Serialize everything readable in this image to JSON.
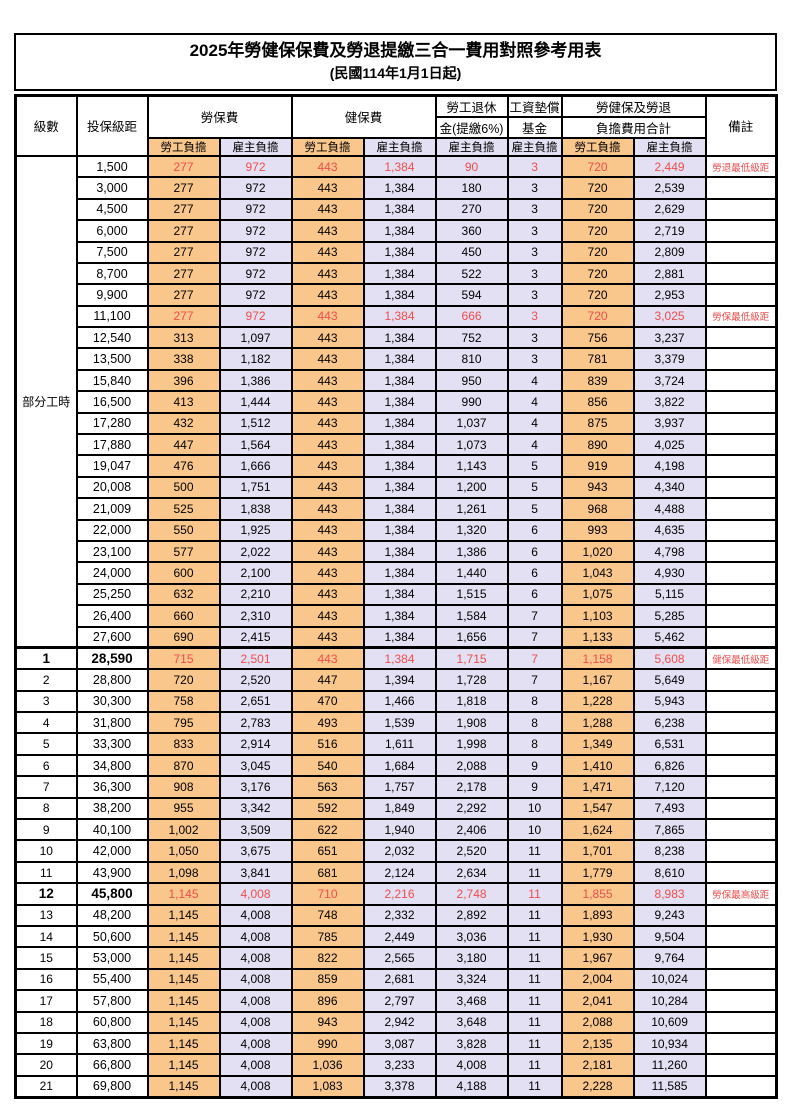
{
  "title": "2025年勞健保保費及勞退提繳三合一費用對照參考用表",
  "subtitle": "(民國114年1月1日起)",
  "colors": {
    "employee_column_bg": "#F9C68C",
    "employer_column_bg": "#E2E0F2",
    "highlight_red": "#EE4D4D",
    "border": "#000000"
  },
  "header": {
    "level": "級數",
    "bracket": "投保級距",
    "labor_insurance": "勞保費",
    "health_insurance": "健保費",
    "pension_line1": "勞工退休",
    "pension_line2": "金(提繳6%)",
    "wage_fund_line1": "工資墊償",
    "wage_fund_line2": "基金",
    "total_line1": "勞健保及勞退",
    "total_line2": "負擔費用合計",
    "remark": "備註",
    "employee": "勞工負擔",
    "employer": "雇主負擔"
  },
  "part_time": {
    "label": "部分工時",
    "span": 23
  },
  "rows": [
    {
      "level": null,
      "bracket": "1,500",
      "values": [
        "277",
        "972",
        "443",
        "1,384",
        "90",
        "3",
        "720",
        "2,449"
      ],
      "remark": "勞退最低級距",
      "red": true,
      "strong": false,
      "section": false
    },
    {
      "level": null,
      "bracket": "3,000",
      "values": [
        "277",
        "972",
        "443",
        "1,384",
        "180",
        "3",
        "720",
        "2,539"
      ],
      "remark": "",
      "red": false,
      "strong": false,
      "section": false
    },
    {
      "level": null,
      "bracket": "4,500",
      "values": [
        "277",
        "972",
        "443",
        "1,384",
        "270",
        "3",
        "720",
        "2,629"
      ],
      "remark": "",
      "red": false,
      "strong": false,
      "section": false
    },
    {
      "level": null,
      "bracket": "6,000",
      "values": [
        "277",
        "972",
        "443",
        "1,384",
        "360",
        "3",
        "720",
        "2,719"
      ],
      "remark": "",
      "red": false,
      "strong": false,
      "section": false
    },
    {
      "level": null,
      "bracket": "7,500",
      "values": [
        "277",
        "972",
        "443",
        "1,384",
        "450",
        "3",
        "720",
        "2,809"
      ],
      "remark": "",
      "red": false,
      "strong": false,
      "section": false
    },
    {
      "level": null,
      "bracket": "8,700",
      "values": [
        "277",
        "972",
        "443",
        "1,384",
        "522",
        "3",
        "720",
        "2,881"
      ],
      "remark": "",
      "red": false,
      "strong": false,
      "section": false
    },
    {
      "level": null,
      "bracket": "9,900",
      "values": [
        "277",
        "972",
        "443",
        "1,384",
        "594",
        "3",
        "720",
        "2,953"
      ],
      "remark": "",
      "red": false,
      "strong": false,
      "section": false
    },
    {
      "level": null,
      "bracket": "11,100",
      "values": [
        "277",
        "972",
        "443",
        "1,384",
        "666",
        "3",
        "720",
        "3,025"
      ],
      "remark": "勞保最低級距",
      "red": true,
      "strong": false,
      "section": false
    },
    {
      "level": null,
      "bracket": "12,540",
      "values": [
        "313",
        "1,097",
        "443",
        "1,384",
        "752",
        "3",
        "756",
        "3,237"
      ],
      "remark": "",
      "red": false,
      "strong": false,
      "section": false
    },
    {
      "level": null,
      "bracket": "13,500",
      "values": [
        "338",
        "1,182",
        "443",
        "1,384",
        "810",
        "3",
        "781",
        "3,379"
      ],
      "remark": "",
      "red": false,
      "strong": false,
      "section": false
    },
    {
      "level": null,
      "bracket": "15,840",
      "values": [
        "396",
        "1,386",
        "443",
        "1,384",
        "950",
        "4",
        "839",
        "3,724"
      ],
      "remark": "",
      "red": false,
      "strong": false,
      "section": false
    },
    {
      "level": null,
      "bracket": "16,500",
      "values": [
        "413",
        "1,444",
        "443",
        "1,384",
        "990",
        "4",
        "856",
        "3,822"
      ],
      "remark": "",
      "red": false,
      "strong": false,
      "section": false
    },
    {
      "level": null,
      "bracket": "17,280",
      "values": [
        "432",
        "1,512",
        "443",
        "1,384",
        "1,037",
        "4",
        "875",
        "3,937"
      ],
      "remark": "",
      "red": false,
      "strong": false,
      "section": false
    },
    {
      "level": null,
      "bracket": "17,880",
      "values": [
        "447",
        "1,564",
        "443",
        "1,384",
        "1,073",
        "4",
        "890",
        "4,025"
      ],
      "remark": "",
      "red": false,
      "strong": false,
      "section": false
    },
    {
      "level": null,
      "bracket": "19,047",
      "values": [
        "476",
        "1,666",
        "443",
        "1,384",
        "1,143",
        "5",
        "919",
        "4,198"
      ],
      "remark": "",
      "red": false,
      "strong": false,
      "section": false
    },
    {
      "level": null,
      "bracket": "20,008",
      "values": [
        "500",
        "1,751",
        "443",
        "1,384",
        "1,200",
        "5",
        "943",
        "4,340"
      ],
      "remark": "",
      "red": false,
      "strong": false,
      "section": false
    },
    {
      "level": null,
      "bracket": "21,009",
      "values": [
        "525",
        "1,838",
        "443",
        "1,384",
        "1,261",
        "5",
        "968",
        "4,488"
      ],
      "remark": "",
      "red": false,
      "strong": false,
      "section": false
    },
    {
      "level": null,
      "bracket": "22,000",
      "values": [
        "550",
        "1,925",
        "443",
        "1,384",
        "1,320",
        "6",
        "993",
        "4,635"
      ],
      "remark": "",
      "red": false,
      "strong": false,
      "section": false
    },
    {
      "level": null,
      "bracket": "23,100",
      "values": [
        "577",
        "2,022",
        "443",
        "1,384",
        "1,386",
        "6",
        "1,020",
        "4,798"
      ],
      "remark": "",
      "red": false,
      "strong": false,
      "section": false
    },
    {
      "level": null,
      "bracket": "24,000",
      "values": [
        "600",
        "2,100",
        "443",
        "1,384",
        "1,440",
        "6",
        "1,043",
        "4,930"
      ],
      "remark": "",
      "red": false,
      "strong": false,
      "section": false
    },
    {
      "level": null,
      "bracket": "25,250",
      "values": [
        "632",
        "2,210",
        "443",
        "1,384",
        "1,515",
        "6",
        "1,075",
        "5,115"
      ],
      "remark": "",
      "red": false,
      "strong": false,
      "section": false
    },
    {
      "level": null,
      "bracket": "26,400",
      "values": [
        "660",
        "2,310",
        "443",
        "1,384",
        "1,584",
        "7",
        "1,103",
        "5,285"
      ],
      "remark": "",
      "red": false,
      "strong": false,
      "section": false
    },
    {
      "level": null,
      "bracket": "27,600",
      "values": [
        "690",
        "2,415",
        "443",
        "1,384",
        "1,656",
        "7",
        "1,133",
        "5,462"
      ],
      "remark": "",
      "red": false,
      "strong": false,
      "section": false
    },
    {
      "level": "1",
      "bracket": "28,590",
      "values": [
        "715",
        "2,501",
        "443",
        "1,384",
        "1,715",
        "7",
        "1,158",
        "5,608"
      ],
      "remark": "健保最低級距",
      "red": true,
      "strong": true,
      "section": true
    },
    {
      "level": "2",
      "bracket": "28,800",
      "values": [
        "720",
        "2,520",
        "447",
        "1,394",
        "1,728",
        "7",
        "1,167",
        "5,649"
      ],
      "remark": "",
      "red": false,
      "strong": false,
      "section": false
    },
    {
      "level": "3",
      "bracket": "30,300",
      "values": [
        "758",
        "2,651",
        "470",
        "1,466",
        "1,818",
        "8",
        "1,228",
        "5,943"
      ],
      "remark": "",
      "red": false,
      "strong": false,
      "section": false
    },
    {
      "level": "4",
      "bracket": "31,800",
      "values": [
        "795",
        "2,783",
        "493",
        "1,539",
        "1,908",
        "8",
        "1,288",
        "6,238"
      ],
      "remark": "",
      "red": false,
      "strong": false,
      "section": false
    },
    {
      "level": "5",
      "bracket": "33,300",
      "values": [
        "833",
        "2,914",
        "516",
        "1,611",
        "1,998",
        "8",
        "1,349",
        "6,531"
      ],
      "remark": "",
      "red": false,
      "strong": false,
      "section": false
    },
    {
      "level": "6",
      "bracket": "34,800",
      "values": [
        "870",
        "3,045",
        "540",
        "1,684",
        "2,088",
        "9",
        "1,410",
        "6,826"
      ],
      "remark": "",
      "red": false,
      "strong": false,
      "section": false
    },
    {
      "level": "7",
      "bracket": "36,300",
      "values": [
        "908",
        "3,176",
        "563",
        "1,757",
        "2,178",
        "9",
        "1,471",
        "7,120"
      ],
      "remark": "",
      "red": false,
      "strong": false,
      "section": false
    },
    {
      "level": "8",
      "bracket": "38,200",
      "values": [
        "955",
        "3,342",
        "592",
        "1,849",
        "2,292",
        "10",
        "1,547",
        "7,493"
      ],
      "remark": "",
      "red": false,
      "strong": false,
      "section": false
    },
    {
      "level": "9",
      "bracket": "40,100",
      "values": [
        "1,002",
        "3,509",
        "622",
        "1,940",
        "2,406",
        "10",
        "1,624",
        "7,865"
      ],
      "remark": "",
      "red": false,
      "strong": false,
      "section": false
    },
    {
      "level": "10",
      "bracket": "42,000",
      "values": [
        "1,050",
        "3,675",
        "651",
        "2,032",
        "2,520",
        "11",
        "1,701",
        "8,238"
      ],
      "remark": "",
      "red": false,
      "strong": false,
      "section": false
    },
    {
      "level": "11",
      "bracket": "43,900",
      "values": [
        "1,098",
        "3,841",
        "681",
        "2,124",
        "2,634",
        "11",
        "1,779",
        "8,610"
      ],
      "remark": "",
      "red": false,
      "strong": false,
      "section": false
    },
    {
      "level": "12",
      "bracket": "45,800",
      "values": [
        "1,145",
        "4,008",
        "710",
        "2,216",
        "2,748",
        "11",
        "1,855",
        "8,983"
      ],
      "remark": "勞保最高級距",
      "red": true,
      "strong": true,
      "section": false
    },
    {
      "level": "13",
      "bracket": "48,200",
      "values": [
        "1,145",
        "4,008",
        "748",
        "2,332",
        "2,892",
        "11",
        "1,893",
        "9,243"
      ],
      "remark": "",
      "red": false,
      "strong": false,
      "section": false
    },
    {
      "level": "14",
      "bracket": "50,600",
      "values": [
        "1,145",
        "4,008",
        "785",
        "2,449",
        "3,036",
        "11",
        "1,930",
        "9,504"
      ],
      "remark": "",
      "red": false,
      "strong": false,
      "section": false
    },
    {
      "level": "15",
      "bracket": "53,000",
      "values": [
        "1,145",
        "4,008",
        "822",
        "2,565",
        "3,180",
        "11",
        "1,967",
        "9,764"
      ],
      "remark": "",
      "red": false,
      "strong": false,
      "section": false
    },
    {
      "level": "16",
      "bracket": "55,400",
      "values": [
        "1,145",
        "4,008",
        "859",
        "2,681",
        "3,324",
        "11",
        "2,004",
        "10,024"
      ],
      "remark": "",
      "red": false,
      "strong": false,
      "section": false
    },
    {
      "level": "17",
      "bracket": "57,800",
      "values": [
        "1,145",
        "4,008",
        "896",
        "2,797",
        "3,468",
        "11",
        "2,041",
        "10,284"
      ],
      "remark": "",
      "red": false,
      "strong": false,
      "section": false
    },
    {
      "level": "18",
      "bracket": "60,800",
      "values": [
        "1,145",
        "4,008",
        "943",
        "2,942",
        "3,648",
        "11",
        "2,088",
        "10,609"
      ],
      "remark": "",
      "red": false,
      "strong": false,
      "section": false
    },
    {
      "level": "19",
      "bracket": "63,800",
      "values": [
        "1,145",
        "4,008",
        "990",
        "3,087",
        "3,828",
        "11",
        "2,135",
        "10,934"
      ],
      "remark": "",
      "red": false,
      "strong": false,
      "section": false
    },
    {
      "level": "20",
      "bracket": "66,800",
      "values": [
        "1,145",
        "4,008",
        "1,036",
        "3,233",
        "4,008",
        "11",
        "2,181",
        "11,260"
      ],
      "remark": "",
      "red": false,
      "strong": false,
      "section": false
    },
    {
      "level": "21",
      "bracket": "69,800",
      "values": [
        "1,145",
        "4,008",
        "1,083",
        "3,378",
        "4,188",
        "11",
        "2,228",
        "11,585"
      ],
      "remark": "",
      "red": false,
      "strong": false,
      "section": false
    }
  ]
}
